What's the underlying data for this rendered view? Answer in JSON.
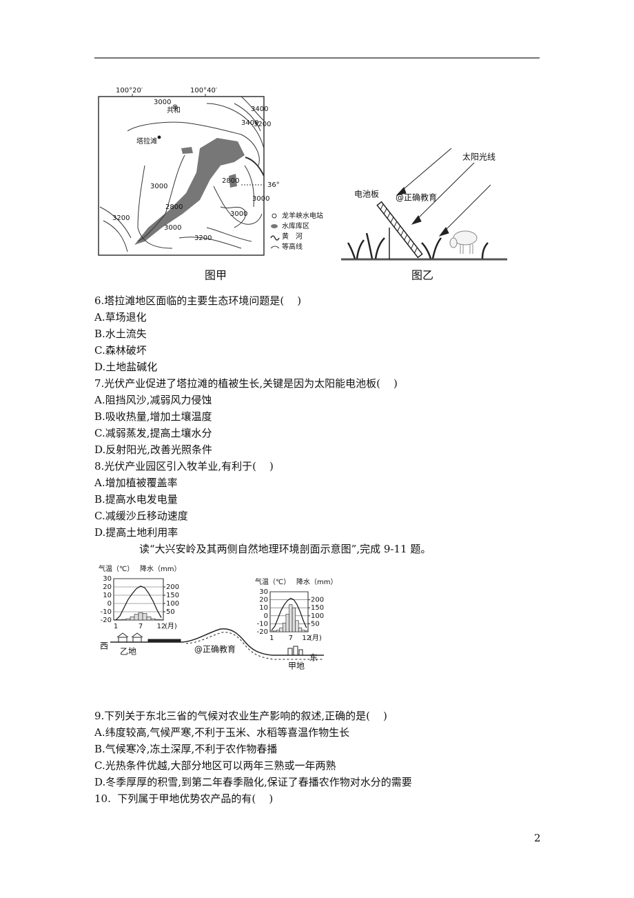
{
  "map": {
    "labels": [
      "100°20′",
      "100°40′",
      "共和",
      "3000",
      "3400",
      "3200",
      "3400",
      "塔拉滩",
      "2800",
      "3000",
      "2800",
      "36°",
      "3000",
      "3000",
      "3200",
      "3000",
      "3200"
    ],
    "legend": [
      "龙羊峡水电站",
      "水库库区",
      "黄　河",
      "等高线"
    ],
    "caption": "图甲"
  },
  "panel": {
    "labels": [
      "太阳光线",
      "电池板",
      "@正确教育"
    ],
    "caption": "图乙"
  },
  "questions": [
    {
      "stem": "6.塔拉滩地区面临的主要生态环境问题是(    )",
      "options": [
        "A.草场退化",
        "B.水土流失",
        "C.森林破坏",
        "D.土地盐碱化"
      ]
    },
    {
      "stem": "7.光伏产业促进了塔拉滩的植被生长,关键是因为太阳能电池板(    )",
      "options": [
        "A.阻挡风沙,减弱风力侵蚀",
        "B.吸收热量,增加土壤温度",
        "C.减弱蒸发,提高土壤水分",
        "D.反射阳光,改善光照条件"
      ]
    },
    {
      "stem": "8.光伏产业园区引入牧羊业,有利于(    )",
      "options": [
        "A.增加植被覆盖率",
        "B.提高水电发电量",
        "C.减缓沙丘移动速度",
        "D.提高土地利用率"
      ]
    },
    {
      "stem": "9.下列关于东北三省的气候对农业生产影响的叙述,正确的是(    )",
      "options": [
        "A.纬度较高,气候严寒,不利于玉米、水稻等喜温作物生长",
        "B.气候寒冷,冻土深厚,不利于农作物春播",
        "C.光热条件优越,大部分地区可以两年三熟或一年两熟",
        "D.冬季厚厚的积雪,到第二年春季融化,保证了春播农作物对水分的需要"
      ]
    },
    {
      "stem": "10.  下列属于甲地优势农产品的有(    )"
    }
  ],
  "intro": "读“大兴安岭及其两侧自然地理环境剖面示意图”,完成 9-11 题。",
  "profile": {
    "labels": [
      "西",
      "乙地",
      "@正确教育",
      "东",
      "甲地"
    ],
    "charts": [
      {
        "temp_label": "气温（℃）",
        "precip_label": "降水（mm）",
        "temp_ticks": [
          30,
          20,
          10,
          0,
          -10,
          -20
        ],
        "precip_ticks": [
          200,
          150,
          100,
          50
        ],
        "month_ticks": [
          1,
          7,
          12
        ],
        "month_unit": "(月)",
        "temp_range": [
          -20,
          30
        ],
        "precip_range": [
          0,
          250
        ],
        "temperature": [
          -20,
          -15,
          -5,
          5,
          12,
          18,
          21,
          19,
          12,
          3,
          -8,
          -17
        ],
        "precipitation": [
          2,
          2,
          4,
          8,
          20,
          35,
          45,
          40,
          20,
          8,
          4,
          2
        ]
      },
      {
        "temp_label": "气温（℃）",
        "precip_label": "降水（mm）",
        "temp_ticks": [
          30,
          20,
          10,
          0,
          -10,
          -20
        ],
        "precip_ticks": [
          200,
          150,
          100,
          50
        ],
        "month_ticks": [
          1,
          7,
          12
        ],
        "month_unit": "(月)",
        "temp_range": [
          -20,
          30
        ],
        "precip_range": [
          0,
          250
        ],
        "temperature": [
          -18,
          -13,
          -3,
          7,
          14,
          19,
          22,
          20,
          14,
          5,
          -6,
          -15
        ],
        "precipitation": [
          5,
          5,
          10,
          25,
          55,
          110,
          170,
          150,
          70,
          25,
          10,
          5
        ]
      }
    ]
  },
  "page_number": "2"
}
